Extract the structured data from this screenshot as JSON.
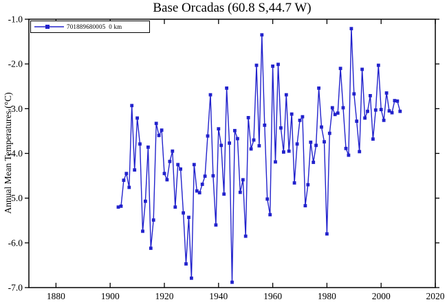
{
  "title": "Base Orcadas (60.8 S,44.7 W)",
  "legend": {
    "station_label": "701889680005  0 km"
  },
  "colors": {
    "series": "#2222cc",
    "axis": "#000000",
    "background": "#ffffff"
  },
  "chart_data": {
    "type": "line",
    "title": "Base Orcadas (60.8 S,44.7 W)",
    "xlabel": "",
    "ylabel": "Annual Mean Temperatures (°C)",
    "legend_entries": [
      "701889680005  0 km"
    ],
    "legend_position": "top-left",
    "grid": false,
    "marker": "square",
    "xlim": [
      1870,
      2020
    ],
    "ylim": [
      -7.0,
      -1.0
    ],
    "x_ticks": [
      1880,
      1900,
      1920,
      1940,
      1960,
      1980,
      2000,
      2020
    ],
    "y_ticks": [
      -1.0,
      -2.0,
      -3.0,
      -4.0,
      -5.0,
      -6.0,
      -7.0
    ],
    "y_tick_labels": [
      "-1.0",
      "-2.0",
      "-3.0",
      "-4.0",
      "-5.0",
      "-6.0",
      "-7.0"
    ],
    "series_name": "701889680005 0 km",
    "years": [
      1903,
      1904,
      1905,
      1906,
      1907,
      1908,
      1909,
      1910,
      1911,
      1912,
      1913,
      1914,
      1915,
      1916,
      1917,
      1918,
      1919,
      1920,
      1921,
      1922,
      1923,
      1924,
      1925,
      1926,
      1927,
      1928,
      1929,
      1930,
      1931,
      1932,
      1933,
      1934,
      1935,
      1936,
      1937,
      1938,
      1939,
      1940,
      1941,
      1942,
      1943,
      1944,
      1945,
      1946,
      1947,
      1948,
      1949,
      1950,
      1951,
      1952,
      1953,
      1954,
      1955,
      1956,
      1957,
      1958,
      1959,
      1960,
      1961,
      1962,
      1963,
      1964,
      1965,
      1966,
      1967,
      1968,
      1969,
      1970,
      1971,
      1972,
      1973,
      1974,
      1975,
      1976,
      1977,
      1978,
      1979,
      1980,
      1981,
      1982,
      1983,
      1984,
      1985,
      1986,
      1987,
      1988,
      1989,
      1990,
      1991,
      1992,
      1993,
      1994,
      1995,
      1996,
      1997,
      1998,
      1999,
      2000,
      2001,
      2002,
      2003,
      2004,
      2005,
      2006,
      2007
    ],
    "values": [
      -5.2,
      -5.18,
      -4.6,
      -4.45,
      -4.76,
      -2.93,
      -4.37,
      -3.21,
      -3.79,
      -5.74,
      -5.07,
      -3.86,
      -6.12,
      -5.49,
      -3.33,
      -3.6,
      -3.48,
      -4.45,
      -4.59,
      -4.18,
      -3.95,
      -5.2,
      -4.25,
      -4.35,
      -5.33,
      -6.47,
      -5.43,
      -6.79,
      -4.25,
      -4.84,
      -4.88,
      -4.69,
      -4.51,
      -3.61,
      -2.69,
      -4.5,
      -5.6,
      -3.45,
      -3.82,
      -4.91,
      -2.54,
      -3.77,
      -6.88,
      -3.49,
      -3.67,
      -4.87,
      -4.59,
      -5.85,
      -3.2,
      -3.9,
      -3.7,
      -2.03,
      -3.83,
      -1.35,
      -3.37,
      -5.02,
      -5.37,
      -2.05,
      -4.19,
      -2.01,
      -3.43,
      -3.97,
      -2.69,
      -3.95,
      -3.12,
      -4.66,
      -3.79,
      -3.26,
      -3.18,
      -5.17,
      -4.7,
      -3.75,
      -4.2,
      -3.82,
      -2.54,
      -3.41,
      -3.74,
      -5.8,
      -3.55,
      -2.98,
      -3.13,
      -3.1,
      -2.1,
      -2.98,
      -3.89,
      -4.04,
      -1.21,
      -2.67,
      -3.28,
      -3.96,
      -2.12,
      -3.21,
      -3.06,
      -2.71,
      -3.68,
      -3.03,
      -2.03,
      -3.02,
      -3.26,
      -2.65,
      -3.05,
      -3.09,
      -2.82,
      -2.83,
      -3.06
    ]
  }
}
